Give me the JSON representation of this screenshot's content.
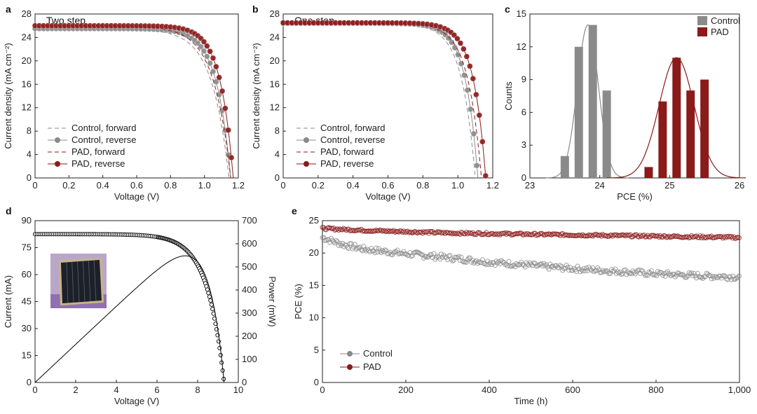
{
  "chart_data": [
    {
      "panel": "a",
      "type": "line",
      "title": "Two step",
      "xlabel": "Voltage (V)",
      "ylabel": "Current density (mA cm⁻²)",
      "xlim": [
        0,
        1.2
      ],
      "ylim": [
        0,
        28
      ],
      "xticks": [
        "0",
        "0.2",
        "0.4",
        "0.6",
        "0.8",
        "1.0",
        "1.2"
      ],
      "yticks": [
        "0",
        "4",
        "8",
        "12",
        "16",
        "20",
        "24",
        "28"
      ],
      "legend_position": "bottom-left",
      "series": [
        {
          "name": "Control, forward",
          "style": "dashed",
          "color": "#8a8a8a",
          "jsc": 25.4,
          "voc": 1.145,
          "knee": 0.8,
          "sharp": 10
        },
        {
          "name": "Control, reverse",
          "style": "line-markers",
          "color": "#8a8a8a",
          "jsc": 25.5,
          "voc": 1.155,
          "knee": 0.85,
          "sharp": 12
        },
        {
          "name": "PAD, forward",
          "style": "dashed",
          "color": "#8b1a1a",
          "jsc": 25.9,
          "voc": 1.155,
          "knee": 0.82,
          "sharp": 10
        },
        {
          "name": "PAD, reverse",
          "style": "line-markers",
          "color": "#8b1a1a",
          "jsc": 26.0,
          "voc": 1.17,
          "knee": 0.88,
          "sharp": 13
        }
      ]
    },
    {
      "panel": "b",
      "type": "line",
      "title": "One step",
      "xlabel": "Voltage (V)",
      "ylabel": "Current density (mA cm⁻²)",
      "xlim": [
        0,
        1.2
      ],
      "ylim": [
        0,
        28
      ],
      "xticks": [
        "0",
        "0.2",
        "0.4",
        "0.6",
        "0.8",
        "1.0",
        "1.2"
      ],
      "yticks": [
        "0",
        "4",
        "8",
        "12",
        "16",
        "20",
        "24",
        "28"
      ],
      "legend_position": "bottom-left",
      "series": [
        {
          "name": "Control, forward",
          "style": "dashed",
          "color": "#8a8a8a",
          "jsc": 26.3,
          "voc": 1.1,
          "knee": 0.85,
          "sharp": 13
        },
        {
          "name": "Control, reverse",
          "style": "line-markers",
          "color": "#8a8a8a",
          "jsc": 26.4,
          "voc": 1.115,
          "knee": 0.9,
          "sharp": 14
        },
        {
          "name": "PAD, forward",
          "style": "dashed",
          "color": "#8b1a1a",
          "jsc": 26.4,
          "voc": 1.135,
          "knee": 0.88,
          "sharp": 13
        },
        {
          "name": "PAD, reverse",
          "style": "line-markers",
          "color": "#8b1a1a",
          "jsc": 26.5,
          "voc": 1.16,
          "knee": 0.93,
          "sharp": 14
        }
      ]
    },
    {
      "panel": "c",
      "type": "bar",
      "xlabel": "PCE (%)",
      "ylabel": "Counts",
      "xlim": [
        23,
        26
      ],
      "ylim": [
        0,
        15
      ],
      "xticks": [
        "23",
        "24",
        "25",
        "26"
      ],
      "yticks": [
        "0",
        "3",
        "6",
        "9",
        "12",
        "15"
      ],
      "legend_position": "top-right",
      "series": [
        {
          "name": "Control",
          "color": "#8a8a8a",
          "bin_centers": [
            23.5,
            23.7,
            23.9,
            24.1
          ],
          "values": [
            2,
            12,
            14,
            8
          ],
          "fit_mean": 23.83,
          "fit_sd": 0.15,
          "fit_peak": 14
        },
        {
          "name": "PAD",
          "color": "#8b1a1a",
          "bin_centers": [
            24.7,
            24.9,
            25.1,
            25.3,
            25.5
          ],
          "values": [
            1,
            7,
            11,
            8,
            9
          ],
          "fit_mean": 25.1,
          "fit_sd": 0.25,
          "fit_peak": 11
        }
      ]
    },
    {
      "panel": "d",
      "type": "line",
      "xlabel": "Voltage (V)",
      "ylabel": "Current (mA)",
      "y2label": "Power (mW)",
      "xlim": [
        0,
        10
      ],
      "ylim": [
        0,
        90
      ],
      "y2lim": [
        0,
        700
      ],
      "xticks": [
        "0",
        "2",
        "4",
        "6",
        "8",
        "10"
      ],
      "yticks": [
        "0",
        "15",
        "30",
        "45",
        "60",
        "75",
        "90"
      ],
      "y2ticks": [
        "0",
        "100",
        "200",
        "300",
        "400",
        "500",
        "600",
        "700"
      ],
      "series": [
        {
          "name": "Current",
          "style": "open-markers",
          "color": "#000000",
          "isc": 82.5,
          "voc": 9.3,
          "knee": 6.2,
          "sharp": 1.2
        },
        {
          "name": "Power",
          "style": "line",
          "color": "#000000",
          "axis": "y2"
        }
      ],
      "inset": "photo of perovskite module"
    },
    {
      "panel": "e",
      "type": "scatter",
      "xlabel": "Time (h)",
      "ylabel": "PCE (%)",
      "xlim": [
        0,
        1000
      ],
      "ylim": [
        0,
        25
      ],
      "xticks": [
        "0",
        "200",
        "400",
        "600",
        "800",
        "1,000"
      ],
      "yticks": [
        "0",
        "5",
        "10",
        "15",
        "20",
        "25"
      ],
      "legend_position": "bottom-left",
      "series": [
        {
          "name": "Control",
          "color": "#8a8a8a",
          "x": [
            0,
            50,
            100,
            200,
            300,
            400,
            500,
            600,
            700,
            800,
            900,
            1000
          ],
          "y": [
            22.4,
            21.3,
            20.6,
            19.9,
            19.3,
            18.6,
            18.1,
            17.6,
            17.2,
            16.8,
            16.5,
            16.3
          ]
        },
        {
          "name": "PAD",
          "color": "#8b1a1a",
          "x": [
            0,
            100,
            200,
            300,
            400,
            500,
            600,
            700,
            800,
            900,
            1000
          ],
          "y": [
            23.8,
            23.5,
            23.3,
            23.1,
            23.0,
            22.9,
            22.8,
            22.7,
            22.6,
            22.5,
            22.4
          ]
        }
      ]
    }
  ],
  "colors": {
    "control": "#8a8a8a",
    "pad": "#8b1a1a",
    "axis": "#222222"
  }
}
